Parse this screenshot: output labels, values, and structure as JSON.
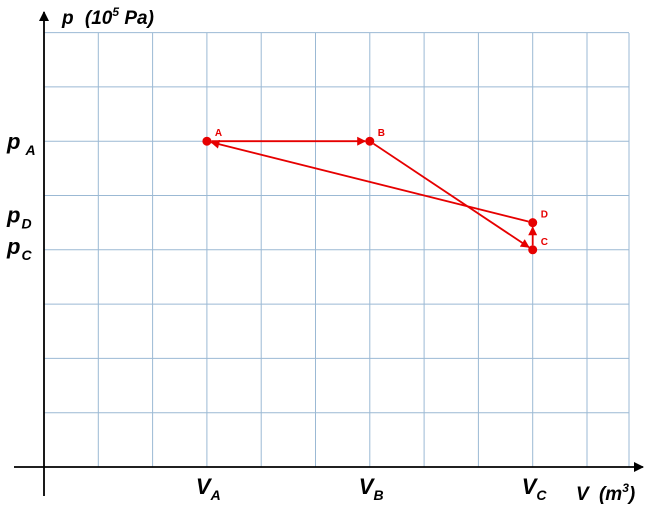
{
  "axes": {
    "y_title": "p",
    "y_unit_open": "(10",
    "y_unit_exp": "5",
    "y_unit_close": " Pa)",
    "x_title": "V",
    "x_unit_open": "(m",
    "x_unit_exp": "3",
    "x_unit_close": ")"
  },
  "ticks": {
    "x": [
      {
        "main": "V",
        "sub": "A",
        "grid_col": 3
      },
      {
        "main": "V",
        "sub": "B",
        "grid_col": 6
      },
      {
        "main": "V",
        "sub": "C",
        "grid_col": 9
      }
    ],
    "y": [
      {
        "main": "p",
        "sub": "A",
        "grid_row": 6
      },
      {
        "main": "p",
        "sub": "D",
        "grid_row": 4.5
      },
      {
        "main": "p",
        "sub": "C",
        "grid_row": 4
      }
    ]
  },
  "states": [
    {
      "name": "A",
      "v_col": 3,
      "p_row": 6
    },
    {
      "name": "B",
      "v_col": 6,
      "p_row": 6
    },
    {
      "name": "C",
      "v_col": 9,
      "p_row": 4
    },
    {
      "name": "D",
      "v_col": 9,
      "p_row": 4.5
    }
  ],
  "processes": [
    {
      "from": "A",
      "to": "B"
    },
    {
      "from": "B",
      "to": "C"
    },
    {
      "from": "C",
      "to": "D"
    },
    {
      "from": "D",
      "to": "A"
    }
  ],
  "colors": {
    "grid": "#9bb9d4",
    "axis": "#000000",
    "process": "#e60000"
  }
}
